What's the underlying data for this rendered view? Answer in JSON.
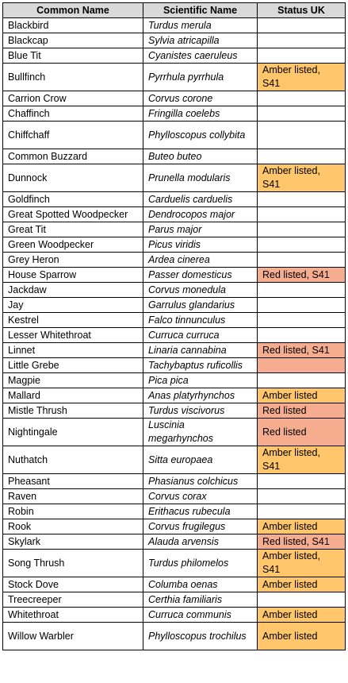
{
  "headers": [
    "Common Name",
    "Scientific Name",
    "Status UK"
  ],
  "colors": {
    "amber": "#ffc66b",
    "red": "#f5ac8f",
    "header": "#d9d9d9"
  },
  "rows": [
    {
      "common": "Blackbird",
      "scientific": "Turdus merula",
      "status": "",
      "level": "",
      "tall": false
    },
    {
      "common": "Blackcap",
      "scientific": "Sylvia atricapilla",
      "status": "",
      "level": "",
      "tall": false
    },
    {
      "common": "Blue Tit",
      "scientific": "Cyanistes caeruleus",
      "status": "",
      "level": "",
      "tall": false
    },
    {
      "common": "Bullfinch",
      "scientific": "Pyrrhula pyrrhula",
      "status": "Amber listed, S41",
      "level": "amber",
      "tall": true
    },
    {
      "common": "Carrion Crow",
      "scientific": "Corvus corone",
      "status": "",
      "level": "",
      "tall": false
    },
    {
      "common": "Chaffinch",
      "scientific": "Fringilla coelebs",
      "status": "",
      "level": "",
      "tall": false
    },
    {
      "common": "Chiffchaff",
      "scientific": "Phylloscopus collybita",
      "status": "",
      "level": "",
      "tall": true
    },
    {
      "common": "Common Buzzard",
      "scientific": "Buteo buteo",
      "status": "",
      "level": "",
      "tall": false
    },
    {
      "common": "Dunnock",
      "scientific": "Prunella modularis",
      "status": "Amber listed, S41",
      "level": "amber",
      "tall": true
    },
    {
      "common": "Goldfinch",
      "scientific": "Carduelis carduelis",
      "status": "",
      "level": "",
      "tall": false
    },
    {
      "common": "Great Spotted Woodpecker",
      "scientific": "Dendrocopos major",
      "status": "",
      "level": "",
      "tall": false
    },
    {
      "common": "Great Tit",
      "scientific": "Parus major",
      "status": "",
      "level": "",
      "tall": false
    },
    {
      "common": "Green Woodpecker",
      "scientific": "Picus viridis",
      "status": "",
      "level": "",
      "tall": false
    },
    {
      "common": "Grey Heron",
      "scientific": "Ardea cinerea",
      "status": "",
      "level": "",
      "tall": false
    },
    {
      "common": "House Sparrow",
      "scientific": "Passer domesticus",
      "status": "Red listed, S41",
      "level": "red",
      "tall": false
    },
    {
      "common": "Jackdaw",
      "scientific": "Corvus monedula",
      "status": "",
      "level": "",
      "tall": false
    },
    {
      "common": "Jay",
      "scientific": "Garrulus glandarius",
      "status": "",
      "level": "",
      "tall": false
    },
    {
      "common": "Kestrel",
      "scientific": "Falco tinnunculus",
      "status": "",
      "level": "",
      "tall": false
    },
    {
      "common": "Lesser Whitethroat",
      "scientific": "Curruca curruca",
      "status": "",
      "level": "",
      "tall": false
    },
    {
      "common": "Linnet",
      "scientific": "Linaria cannabina",
      "status": "Red listed, S41",
      "level": "red",
      "tall": false
    },
    {
      "common": "Little Grebe",
      "scientific": "Tachybaptus ruficollis",
      "status": "",
      "level": "red",
      "tall": false
    },
    {
      "common": "Magpie",
      "scientific": "Pica pica",
      "status": "",
      "level": "",
      "tall": false
    },
    {
      "common": "Mallard",
      "scientific": "Anas platyrhynchos",
      "status": "Amber listed",
      "level": "amber",
      "tall": false
    },
    {
      "common": "Mistle Thrush",
      "scientific": "Turdus viscivorus",
      "status": "Red listed",
      "level": "red",
      "tall": false
    },
    {
      "common": "Nightingale",
      "scientific": "Luscinia megarhynchos",
      "status": "Red listed",
      "level": "red",
      "tall": true
    },
    {
      "common": "Nuthatch",
      "scientific": "Sitta europaea",
      "status": "Amber listed, S41",
      "level": "amber",
      "tall": true
    },
    {
      "common": "Pheasant",
      "scientific": "Phasianus colchicus",
      "status": "",
      "level": "",
      "tall": false
    },
    {
      "common": "Raven",
      "scientific": "Corvus corax",
      "status": "",
      "level": "",
      "tall": false
    },
    {
      "common": "Robin",
      "scientific": "Erithacus rubecula",
      "status": "",
      "level": "",
      "tall": false
    },
    {
      "common": "Rook",
      "scientific": "Corvus frugilegus",
      "status": "Amber listed",
      "level": "amber",
      "tall": false
    },
    {
      "common": "Skylark",
      "scientific": "Alauda arvensis",
      "status": "Red listed, S41",
      "level": "red",
      "tall": false
    },
    {
      "common": "Song Thrush",
      "scientific": "Turdus philomelos",
      "status": "Amber listed, S41",
      "level": "amber",
      "tall": true
    },
    {
      "common": "Stock Dove",
      "scientific": "Columba oenas",
      "status": "Amber listed",
      "level": "amber",
      "tall": false
    },
    {
      "common": "Treecreeper",
      "scientific": "Certhia familiaris",
      "status": "",
      "level": "",
      "tall": false
    },
    {
      "common": "Whitethroat",
      "scientific": "Curruca communis",
      "status": "Amber listed",
      "level": "amber",
      "tall": false
    },
    {
      "common": "Willow Warbler",
      "scientific": "Phylloscopus trochilus",
      "status": "Amber listed",
      "level": "amber",
      "tall": true
    }
  ]
}
